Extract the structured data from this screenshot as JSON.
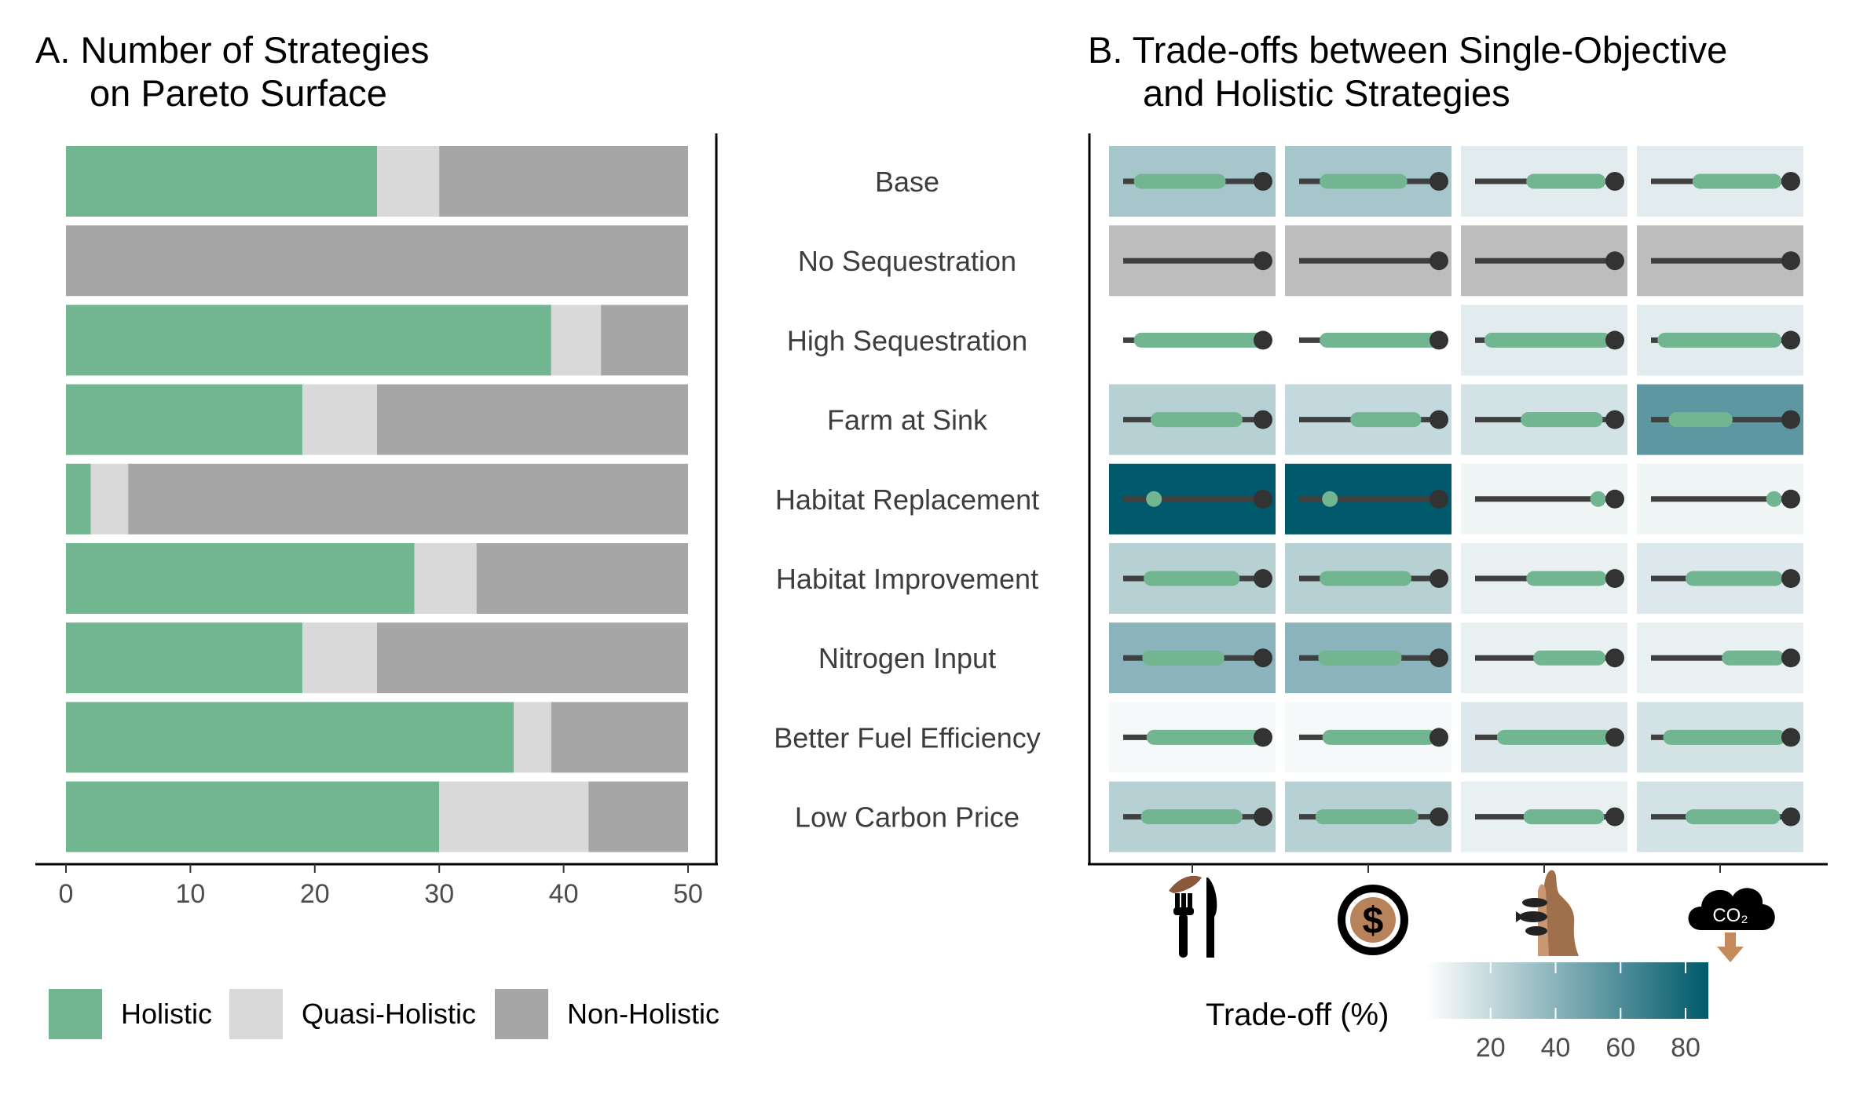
{
  "panel_a": {
    "title_line1": "A. Number of Strategies",
    "title_line2": "on Pareto Surface"
  },
  "panel_b": {
    "title_line1": "B. Trade-offs between Single-Objective",
    "title_line2": "and Holistic Strategies",
    "objective_icons": [
      "food-fork-knife-icon",
      "dollar-coin-icon",
      "otter-fish-habitat-icon",
      "co2-cloud-sequestration-icon"
    ],
    "colorbar": {
      "title": "Trade-off (%)",
      "ticks": [
        "20",
        "40",
        "60",
        "80"
      ],
      "range": [
        0,
        87
      ],
      "colors": [
        "#ffffff",
        "#005a6b"
      ]
    }
  },
  "chart_data": [
    {
      "type": "bar",
      "orientation": "horizontal",
      "stacked": true,
      "title": "A. Number of Strategies on Pareto Surface",
      "categories": [
        "Base",
        "No Sequestration",
        "High Sequestration",
        "Farm at Sink",
        "Habitat Replacement",
        "Habitat Improvement",
        "Nitrogen Input",
        "Better Fuel Efficiency",
        "Low Carbon Price"
      ],
      "series": [
        {
          "name": "Holistic",
          "color": "#72b591",
          "values": [
            25,
            0,
            39,
            19,
            2,
            28,
            19,
            36,
            30
          ]
        },
        {
          "name": "Quasi-Holistic",
          "color": "#d9d9d9",
          "values": [
            5,
            0,
            4,
            6,
            3,
            5,
            6,
            3,
            12
          ]
        },
        {
          "name": "Non-Holistic",
          "color": "#a6a6a6",
          "values": [
            20,
            50,
            7,
            25,
            45,
            17,
            25,
            11,
            8
          ]
        }
      ],
      "xlim": [
        0,
        50
      ],
      "xticks": [
        "0",
        "10",
        "20",
        "30",
        "40",
        "50"
      ],
      "legend_position": "bottom",
      "grid": false
    },
    {
      "type": "heatmap",
      "title": "B. Trade-offs between Single-Objective and Holistic Strategies",
      "rows": [
        "Base",
        "No Sequestration",
        "High Sequestration",
        "Farm at Sink",
        "Habitat Replacement",
        "Habitat Improvement",
        "Nitrogen Input",
        "Better Fuel Efficiency",
        "Low Carbon Price"
      ],
      "columns": [
        "food-fork-knife-icon",
        "dollar-coin-icon",
        "otter-fish-habitat-icon",
        "co2-cloud-sequestration-icon"
      ],
      "tradeoff_percent": [
        [
          30,
          30,
          10,
          10
        ],
        [
          null,
          null,
          null,
          null
        ],
        [
          0,
          0,
          10,
          10
        ],
        [
          25,
          20,
          15,
          55
        ],
        [
          87,
          87,
          5,
          5
        ],
        [
          25,
          25,
          8,
          12
        ],
        [
          40,
          40,
          8,
          8
        ],
        [
          3,
          3,
          12,
          15
        ],
        [
          25,
          25,
          8,
          15
        ]
      ],
      "ranges": [
        [
          [
            0.13,
            0.68
          ],
          [
            0.2,
            0.72
          ],
          [
            0.42,
            0.88
          ],
          [
            0.35,
            0.88
          ]
        ],
        [
          null,
          null,
          null,
          null
        ],
        [
          [
            0.13,
            0.99
          ],
          [
            0.2,
            0.97
          ],
          [
            0.12,
            0.92
          ],
          [
            0.1,
            0.88
          ]
        ],
        [
          [
            0.25,
            0.8
          ],
          [
            0.42,
            0.82
          ],
          [
            0.38,
            0.86
          ],
          [
            0.18,
            0.53
          ]
        ],
        [
          [
            0.22,
            0.22
          ],
          [
            0.22,
            0.22
          ],
          [
            0.88,
            0.88
          ],
          [
            0.88,
            0.88
          ]
        ],
        [
          [
            0.2,
            0.78
          ],
          [
            0.2,
            0.75
          ],
          [
            0.42,
            0.89
          ],
          [
            0.3,
            0.89
          ]
        ],
        [
          [
            0.19,
            0.67
          ],
          [
            0.19,
            0.68
          ],
          [
            0.47,
            0.88
          ],
          [
            0.56,
            0.9
          ]
        ],
        [
          [
            0.22,
            0.97
          ],
          [
            0.22,
            0.93
          ],
          [
            0.21,
            0.93
          ],
          [
            0.14,
            0.91
          ]
        ],
        [
          [
            0.18,
            0.8
          ],
          [
            0.17,
            0.8
          ],
          [
            0.4,
            0.87
          ],
          [
            0.3,
            0.87
          ]
        ]
      ],
      "colorbar_title": "Trade-off (%)",
      "colorbar_ticks": [
        20,
        40,
        60,
        80
      ]
    }
  ]
}
